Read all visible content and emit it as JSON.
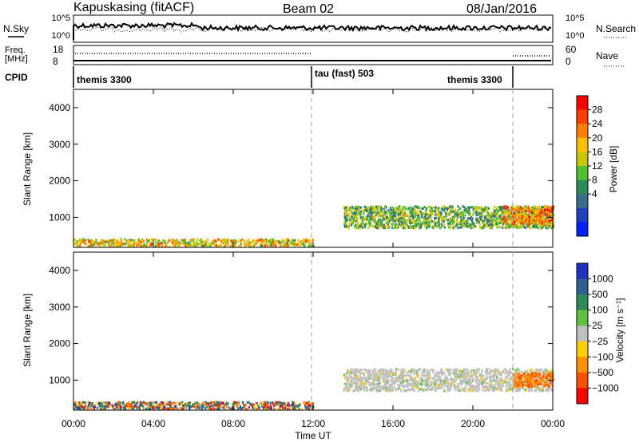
{
  "header": {
    "station": "Kapuskasing (fitACF)",
    "beam": "Beam 02",
    "date": "08/Jan/2016"
  },
  "top_panel": {
    "left_label": "N.Sky",
    "left_ticks": [
      "10^5",
      "10^0"
    ],
    "right_ticks": [
      "10^5",
      "10^0"
    ],
    "right_label": "N.Search"
  },
  "freq_panel": {
    "left_label_1": "Freq.",
    "left_label_2": "[MHz]",
    "left_ticks": [
      "18",
      "8"
    ],
    "right_ticks": [
      "60",
      "0"
    ],
    "right_label": "Nave"
  },
  "cpid": {
    "label": "CPID",
    "segments": [
      {
        "text": "themis 3300"
      },
      {
        "text": "tau (fast) 503"
      },
      {
        "text": "themis 3300"
      }
    ]
  },
  "power_colorbar": {
    "title": "Power [dB]",
    "labels": [
      "28",
      "24",
      "20",
      "16",
      "12",
      "8",
      "4"
    ],
    "colors": [
      "#ff0000",
      "#ff4000",
      "#ff8000",
      "#ffc000",
      "#c8c800",
      "#50c030",
      "#2e8b57",
      "#3a6e8c",
      "#2040c0",
      "#0020ff"
    ]
  },
  "velocity_colorbar": {
    "title": "Velocity [m s⁻¹]",
    "labels": [
      "1000",
      "500",
      "100",
      "25",
      "−25",
      "−100",
      "−500",
      "−1000"
    ],
    "colors": [
      "#2030c0",
      "#306090",
      "#2e8b57",
      "#60c040",
      "#c0c0c0",
      "#ffd000",
      "#ff9000",
      "#ff5000",
      "#ff0000"
    ]
  },
  "chart_data": [
    {
      "type": "heatmap",
      "panel": "power",
      "ylabel": "Slant Range [km]",
      "yticks": [
        "4000",
        "3000",
        "2000",
        "1000"
      ],
      "ylim": [
        180,
        4500
      ],
      "xlim_hours": [
        0,
        24
      ],
      "colorscale_label": "Power [dB]",
      "features": [
        {
          "t_start": 0,
          "t_end": 12,
          "range_start": 200,
          "range_end": 400,
          "value_db": 20
        },
        {
          "t_start": 13.5,
          "t_end": 24,
          "range_start": 700,
          "range_end": 1300,
          "value_db": 14
        },
        {
          "t_start": 21.5,
          "t_end": 24,
          "range_start": 800,
          "range_end": 1300,
          "value_db": 24
        }
      ]
    },
    {
      "type": "heatmap",
      "panel": "velocity",
      "ylabel": "Slant Range [km]",
      "yticks": [
        "4000",
        "3000",
        "2000",
        "1000"
      ],
      "ylim": [
        180,
        4500
      ],
      "xlim_hours": [
        0,
        24
      ],
      "xlabel": "Time UT",
      "xticks": [
        "00:00",
        "04:00",
        "08:00",
        "12:00",
        "16:00",
        "20:00",
        "00:00"
      ],
      "colorscale_label": "Velocity [m s-1]",
      "features": [
        {
          "t_start": 0,
          "t_end": 12,
          "range_start": 200,
          "range_end": 400,
          "value_ms": 0
        },
        {
          "t_start": 13.5,
          "t_end": 24,
          "range_start": 700,
          "range_end": 1300,
          "value_ms": 0
        },
        {
          "t_start": 22,
          "t_end": 24,
          "range_start": 800,
          "range_end": 1200,
          "value_ms": -400
        }
      ]
    }
  ]
}
